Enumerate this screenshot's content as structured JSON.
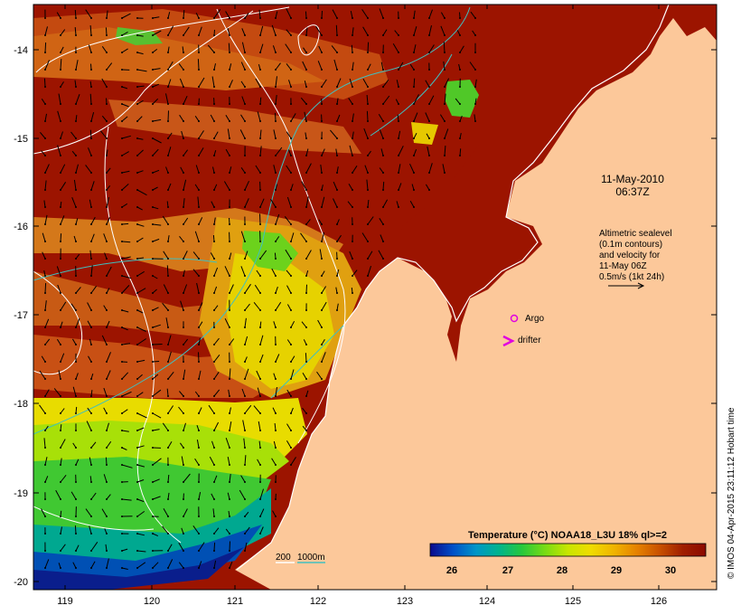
{
  "map": {
    "x_ticks": [
      "119",
      "120",
      "121",
      "122",
      "123",
      "124",
      "125",
      "126"
    ],
    "y_ticks": [
      "-14",
      "-15",
      "-16",
      "-17",
      "-18",
      "-19",
      "-20"
    ],
    "datetime": {
      "line1": "11-May-2010",
      "line2": "06:37Z"
    },
    "legend_text": {
      "line1": "Altimetric sealevel",
      "line2": "(0.1m contours)",
      "line3": "and velocity for",
      "line4": "11-May 06Z",
      "line5": "0.5m/s (1kt 24h)"
    },
    "argo_label": "Argo",
    "drifter_label": "drifter",
    "depth_legend": {
      "d1": "200",
      "d2": "1000m"
    },
    "colorbar": {
      "title": "Temperature (°C) NOAA18_L3U 18% ql>=2",
      "ticks": [
        "26",
        "27",
        "28",
        "29",
        "30"
      ],
      "colors": [
        "#0a0a8c",
        "#0050c8",
        "#0096c8",
        "#00b48c",
        "#28c83c",
        "#78dc14",
        "#c8e600",
        "#f0dc00",
        "#f0b400",
        "#e68200",
        "#c85000",
        "#a01e00",
        "#8c0a00"
      ]
    },
    "credit": "© IMOS 04-Apr-2015 23:11:12 Hobart time",
    "colors": {
      "land": "#fcc89a",
      "warm_dark": "#9c1400",
      "warm": "#c44a10",
      "orange": "#e0861c",
      "yellow": "#e8e000",
      "green": "#50c828",
      "teal": "#00a0a0",
      "blue": "#0030a0",
      "contour": "#ffffff",
      "isobath": "#40c0c0",
      "argo": "#e000e0"
    }
  }
}
